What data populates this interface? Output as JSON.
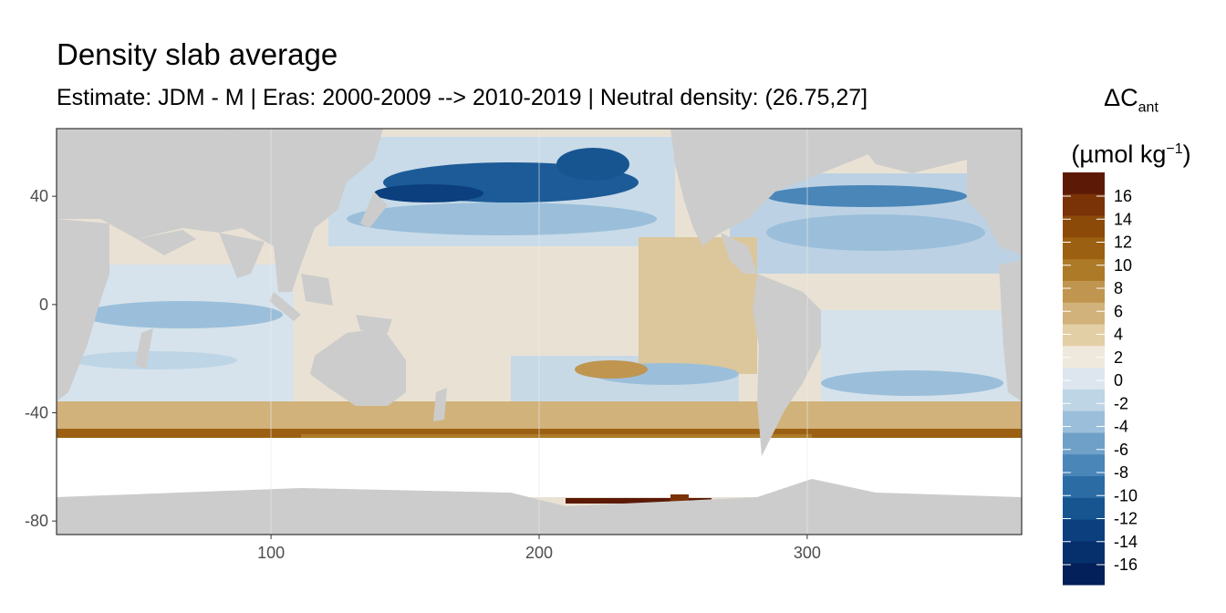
{
  "title": "Density slab average",
  "subtitle": "Estimate: JDM - M | Eras: 2000-2009 --> 2010-2019 | Neutral density: (26.75,27]",
  "legend": {
    "title_main": "ΔC",
    "title_sub": "ant",
    "unit_prefix": "(µmol kg",
    "unit_sup": "−1",
    "unit_suffix": ")",
    "labels": [
      "16",
      "14",
      "12",
      "10",
      "8",
      "6",
      "4",
      "2",
      "0",
      "-2",
      "-4",
      "-6",
      "-8",
      "-10",
      "-12",
      "-14",
      "-16"
    ],
    "colors": [
      "#5c1a06",
      "#7a3307",
      "#8c4a08",
      "#9c6012",
      "#ad7a28",
      "#bf9550",
      "#d1b27a",
      "#e3cfa6",
      "#efe8dc",
      "#dde6ee",
      "#bed5e6",
      "#9bbfda",
      "#6fa0c8",
      "#4a86b8",
      "#2c6ca5",
      "#175591",
      "#0b3f7e",
      "#06306c",
      "#04205a"
    ]
  },
  "chart_data": {
    "type": "heatmap",
    "x_ticks": [
      100,
      200,
      300
    ],
    "y_ticks": [
      40,
      0,
      -40,
      -80
    ],
    "xlim": [
      20,
      380
    ],
    "ylim": [
      -85,
      65
    ],
    "grid": true,
    "legend_position": "right",
    "land_color": "#cccccc",
    "nodata_color": "#ffffff"
  }
}
